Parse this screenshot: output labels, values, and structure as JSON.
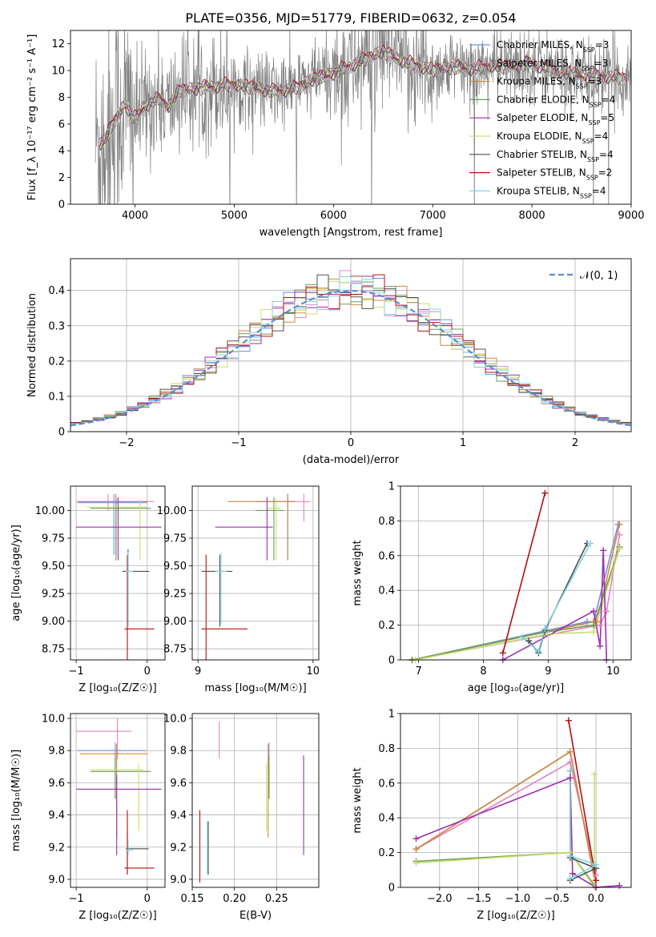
{
  "figure_title": "PLATE=0356, MJD=51779, FIBERID=0632, z=0.054",
  "models": [
    {
      "name": "Chabrier MILES",
      "nssp": "3",
      "color": "#6f93e0"
    },
    {
      "name": "Salpeter MILES",
      "nssp": "3",
      "color": "#e383bf"
    },
    {
      "name": "Kroupa MILES",
      "nssp": "3",
      "color": "#d2873a"
    },
    {
      "name": "Chabrier ELODIE",
      "nssp": "4",
      "color": "#6a9a55"
    },
    {
      "name": "Salpeter ELODIE",
      "nssp": "5",
      "color": "#9b2fb0"
    },
    {
      "name": "Kroupa ELODIE",
      "nssp": "4",
      "color": "#c8e06a"
    },
    {
      "name": "Chabrier STELIB",
      "nssp": "4",
      "color": "#505050"
    },
    {
      "name": "Salpeter STELIB",
      "nssp": "2",
      "color": "#b01010"
    },
    {
      "name": "Kroupa STELIB",
      "nssp": "4",
      "color": "#7fd3e0"
    }
  ],
  "chart_data": [
    {
      "id": "spectrum",
      "type": "line",
      "xlabel": "wavelength [Angstrom, rest frame]",
      "ylabel": "Flux [f_λ 10⁻¹⁷ erg cm⁻² s⁻¹ A⁻¹]",
      "xlim": [
        3350,
        9000
      ],
      "ylim": [
        0,
        13
      ],
      "xticks": [
        4000,
        5000,
        6000,
        7000,
        8000,
        9000
      ],
      "yticks": [
        0,
        2,
        4,
        6,
        8,
        10,
        12
      ],
      "legend": "right",
      "data_color": "#808080",
      "data_range": [
        3600,
        9000
      ],
      "model_shape": {
        "x": [
          3640,
          3700,
          3760,
          3820,
          3900,
          3960,
          4020,
          4080,
          4150,
          4250,
          4340,
          4450,
          4600,
          4800,
          5000,
          5200,
          5400,
          5600,
          5800,
          6000,
          6200,
          6400,
          6500,
          6600,
          6800,
          7000,
          7200,
          7400,
          7600,
          7800,
          8000,
          8200,
          8400,
          8600,
          8800,
          8950
        ],
        "y": [
          4.5,
          4.8,
          5.8,
          6.5,
          7.5,
          6.6,
          6.4,
          7.2,
          7.6,
          7.8,
          7.3,
          8.5,
          8.6,
          8.8,
          8.9,
          8.7,
          8.4,
          8.6,
          9.3,
          9.8,
          10.4,
          11.1,
          11.4,
          11.0,
          10.4,
          10.0,
          10.2,
          10.1,
          10.3,
          10.3,
          10.5,
          10.0,
          9.7,
          9.5,
          9.5,
          9.4
        ]
      }
    },
    {
      "id": "residuals",
      "type": "line",
      "xlabel": "(data-model)/error",
      "ylabel": "Normed distribution",
      "xlim": [
        -2.5,
        2.5
      ],
      "ylim": [
        0,
        0.49
      ],
      "xticks": [
        -2,
        -1,
        0,
        1,
        2
      ],
      "xtick_labels": [
        "−2",
        "−1",
        "0",
        "1",
        "2"
      ],
      "yticks": [
        0.0,
        0.1,
        0.2,
        0.3,
        0.4
      ],
      "grid": true,
      "legend": "top-right",
      "gaussian_label": "𝒩(0, 1)",
      "gaussian_color": "#5b8bd6",
      "bin_width": 0.1
    },
    {
      "id": "age-z",
      "type": "scatter",
      "xlabel": "Z [log₁₀(Z/Z☉)]",
      "ylabel": "age  [log₁₀(age/yr)]",
      "xlim": [
        -1.08,
        0.25
      ],
      "ylim": [
        8.65,
        10.22
      ],
      "xticks": [
        -1,
        0
      ],
      "xtick_labels": [
        "−1",
        "0"
      ],
      "yticks": [
        8.75,
        9.0,
        9.25,
        9.5,
        9.75,
        10.0
      ],
      "ytick_labels": [
        "8.75",
        "9.00",
        "9.25",
        "9.50",
        "9.75",
        "10.00"
      ],
      "grid": true,
      "crosses": [
        {
          "x": -0.55,
          "xe": [
            -1.0,
            0.1
          ],
          "y": 10.08,
          "ye": [
            10.0,
            10.15
          ],
          "color": "#e383bf"
        },
        {
          "x": -0.47,
          "xe": [
            -0.98,
            0.0
          ],
          "y": 10.07,
          "ye": [
            9.6,
            10.15
          ],
          "color": "#6f93e0"
        },
        {
          "x": -0.44,
          "xe": [
            -0.97,
            0.0
          ],
          "y": 10.08,
          "ye": [
            9.6,
            10.15
          ],
          "color": "#d2873a"
        },
        {
          "x": -0.44,
          "xe": [
            -0.8,
            0.05
          ],
          "y": 10.02,
          "ye": [
            9.55,
            10.12
          ],
          "color": "#6a9a55"
        },
        {
          "x": -0.1,
          "xe": [
            -0.85,
            0.0
          ],
          "y": 10.03,
          "ye": [
            9.55,
            10.1
          ],
          "color": "#c8e06a"
        },
        {
          "x": -0.41,
          "xe": [
            -1.0,
            0.2
          ],
          "y": 9.85,
          "ye": [
            9.55,
            10.12
          ],
          "color": "#9b2fb0"
        },
        {
          "x": -0.27,
          "xe": [
            -0.35,
            0.03
          ],
          "y": 9.45,
          "ye": [
            8.95,
            9.65
          ],
          "color": "#505050"
        },
        {
          "x": -0.28,
          "xe": [
            -0.32,
            0.1
          ],
          "y": 8.93,
          "ye": [
            8.65,
            9.6
          ],
          "color": "#b01010"
        },
        {
          "x": -0.27,
          "xe": [
            -0.3,
            -0.2
          ],
          "y": 9.45,
          "ye": [
            8.95,
            9.62
          ],
          "color": "#7fd3e0"
        }
      ]
    },
    {
      "id": "age-mass",
      "type": "scatter",
      "xlabel": "mass [log₁₀(M/M☉)]",
      "ylabel": "",
      "xlim": [
        8.95,
        10.05
      ],
      "ylim": [
        8.65,
        10.22
      ],
      "xticks": [
        9,
        10
      ],
      "yticks": [
        8.75,
        9.0,
        9.25,
        9.5,
        9.75,
        10.0
      ],
      "ytick_labels": [
        "8.75",
        "9.00",
        "9.25",
        "9.50",
        "9.75",
        "10.00"
      ],
      "grid": true,
      "crosses": [
        {
          "x": 9.92,
          "xe": [
            9.85,
            9.98
          ],
          "y": 10.08,
          "ye": [
            9.9,
            10.15
          ],
          "color": "#e383bf"
        },
        {
          "x": 9.78,
          "xe": [
            9.5,
            9.85
          ],
          "y": 10.08,
          "ye": [
            9.55,
            10.15
          ],
          "color": "#6f93e0"
        },
        {
          "x": 9.78,
          "xe": [
            9.26,
            9.85
          ],
          "y": 10.08,
          "ye": [
            9.55,
            10.15
          ],
          "color": "#d2873a"
        },
        {
          "x": 9.66,
          "xe": [
            9.5,
            9.75
          ],
          "y": 10.0,
          "ye": [
            9.55,
            10.12
          ],
          "color": "#6a9a55"
        },
        {
          "x": 9.68,
          "xe": [
            9.6,
            9.72
          ],
          "y": 10.02,
          "ye": [
            9.55,
            10.1
          ],
          "color": "#c8e06a"
        },
        {
          "x": 9.6,
          "xe": [
            9.15,
            9.65
          ],
          "y": 9.85,
          "ye": [
            9.55,
            10.12
          ],
          "color": "#9b2fb0"
        },
        {
          "x": 9.19,
          "xe": [
            9.03,
            9.3
          ],
          "y": 9.45,
          "ye": [
            8.95,
            9.6
          ],
          "color": "#505050"
        },
        {
          "x": 9.07,
          "xe": [
            9.03,
            9.43
          ],
          "y": 8.93,
          "ye": [
            8.65,
            9.6
          ],
          "color": "#b01010"
        },
        {
          "x": 9.2,
          "xe": [
            9.15,
            9.25
          ],
          "y": 9.45,
          "ye": [
            8.97,
            9.62
          ],
          "color": "#7fd3e0"
        }
      ]
    },
    {
      "id": "mw-age",
      "type": "line",
      "xlabel": "age  [log₁₀(age/yr)]",
      "ylabel": "mass weight",
      "xlim": [
        6.72,
        10.28
      ],
      "ylim": [
        0,
        1.0
      ],
      "xticks": [
        7,
        8,
        9,
        10
      ],
      "yticks": [
        0.0,
        0.2,
        0.4,
        0.6,
        0.8,
        1.0
      ],
      "grid": true,
      "series": [
        {
          "color": "#e383bf",
          "x": [
            6.9,
            9.8,
            9.9,
            10.1
          ],
          "y": [
            0.0,
            0.2,
            0.28,
            0.72
          ]
        },
        {
          "color": "#6f93e0",
          "x": [
            6.9,
            9.6,
            9.7,
            10.08
          ],
          "y": [
            0.0,
            0.22,
            0.22,
            0.78
          ]
        },
        {
          "color": "#d2873a",
          "x": [
            6.9,
            9.7,
            9.75,
            10.1
          ],
          "y": [
            0.0,
            0.22,
            0.22,
            0.78
          ]
        },
        {
          "color": "#6a9a55",
          "x": [
            6.9,
            8.95,
            9.7,
            10.1
          ],
          "y": [
            0.0,
            0.16,
            0.2,
            0.65
          ]
        },
        {
          "color": "#c8e06a",
          "x": [
            6.95,
            9.0,
            9.7,
            10.1
          ],
          "y": [
            0.0,
            0.15,
            0.16,
            0.64
          ]
        },
        {
          "color": "#9b2fb0",
          "x": [
            8.3,
            9.7,
            9.8,
            9.85,
            9.9
          ],
          "y": [
            0.0,
            0.28,
            0.08,
            0.63,
            0.0
          ]
        },
        {
          "color": "#505050",
          "x": [
            8.7,
            8.85,
            8.95,
            9.6
          ],
          "y": [
            0.11,
            0.04,
            0.17,
            0.67
          ]
        },
        {
          "color": "#b01010",
          "x": [
            8.3,
            8.95
          ],
          "y": [
            0.04,
            0.96
          ]
        },
        {
          "color": "#7fd3e0",
          "x": [
            8.6,
            8.85,
            8.95,
            9.65
          ],
          "y": [
            0.13,
            0.05,
            0.18,
            0.67
          ]
        }
      ]
    },
    {
      "id": "mass-z",
      "type": "scatter",
      "xlabel": "Z [log₁₀(Z/Z☉)]",
      "ylabel": "mass [log₁₀(M/M☉)]",
      "xlim": [
        -1.08,
        0.25
      ],
      "ylim": [
        8.95,
        10.03
      ],
      "xticks": [
        -1,
        0
      ],
      "xtick_labels": [
        "−1",
        "0"
      ],
      "yticks": [
        9.0,
        9.2,
        9.4,
        9.6,
        9.8,
        10.0
      ],
      "ytick_labels": [
        "9.0",
        "9.2",
        "9.4",
        "9.6",
        "9.8",
        "10.0"
      ],
      "grid": true,
      "crosses": [
        {
          "x": -0.42,
          "xe": [
            -1.0,
            -0.22
          ],
          "y": 9.92,
          "ye": [
            9.75,
            10.0
          ],
          "color": "#e383bf"
        },
        {
          "x": -0.45,
          "xe": [
            -0.98,
            -0.02
          ],
          "y": 9.8,
          "ye": [
            9.5,
            9.85
          ],
          "color": "#6f93e0"
        },
        {
          "x": -0.43,
          "xe": [
            -0.95,
            0.0
          ],
          "y": 9.78,
          "ye": [
            9.26,
            9.84
          ],
          "color": "#d2873a"
        },
        {
          "x": -0.45,
          "xe": [
            -0.8,
            0.05
          ],
          "y": 9.67,
          "ye": [
            9.5,
            9.76
          ],
          "color": "#6a9a55"
        },
        {
          "x": -0.12,
          "xe": [
            -0.8,
            -0.05
          ],
          "y": 9.68,
          "ye": [
            9.3,
            9.72
          ],
          "color": "#c8e06a"
        },
        {
          "x": -0.43,
          "xe": [
            -1.0,
            0.2
          ],
          "y": 9.56,
          "ye": [
            9.15,
            9.65
          ],
          "color": "#9b2fb0"
        },
        {
          "x": -0.28,
          "xe": [
            -0.3,
            0.02
          ],
          "y": 9.19,
          "ye": [
            9.03,
            9.3
          ],
          "color": "#505050"
        },
        {
          "x": -0.28,
          "xe": [
            -0.32,
            0.1
          ],
          "y": 9.07,
          "ye": [
            9.03,
            9.43
          ],
          "color": "#b01010"
        },
        {
          "x": -0.27,
          "xe": [
            -0.3,
            -0.2
          ],
          "y": 9.18,
          "ye": [
            9.15,
            9.25
          ],
          "color": "#7fd3e0"
        }
      ]
    },
    {
      "id": "mass-ebv",
      "type": "scatter",
      "xlabel": "E(B-V)",
      "ylabel": "",
      "xlim": [
        0.15,
        0.3
      ],
      "ylim": [
        8.95,
        10.03
      ],
      "xticks": [
        0.15,
        0.2,
        0.25
      ],
      "xtick_labels": [
        "0.15",
        "0.20",
        "0.25"
      ],
      "yticks": [
        9.0,
        9.2,
        9.4,
        9.6,
        9.8,
        10.0
      ],
      "ytick_labels": [
        "9.0",
        "9.2",
        "9.4",
        "9.6",
        "9.8",
        "10.0"
      ],
      "grid": true,
      "crosses": [
        {
          "x": 0.182,
          "y": 9.92,
          "ye": [
            9.75,
            9.98
          ],
          "color": "#e383bf"
        },
        {
          "x": 0.241,
          "y": 9.78,
          "ye": [
            9.5,
            9.85
          ],
          "color": "#6f93e0"
        },
        {
          "x": 0.24,
          "y": 9.78,
          "ye": [
            9.26,
            9.84
          ],
          "color": "#d2873a"
        },
        {
          "x": 0.241,
          "y": 9.67,
          "ye": [
            9.5,
            9.76
          ],
          "color": "#6a9a55"
        },
        {
          "x": 0.238,
          "y": 9.68,
          "ye": [
            9.3,
            9.72
          ],
          "color": "#c8e06a"
        },
        {
          "x": 0.282,
          "y": 9.56,
          "ye": [
            9.15,
            9.77
          ],
          "color": "#9b2fb0"
        },
        {
          "x": 0.169,
          "y": 9.19,
          "ye": [
            9.03,
            9.36
          ],
          "color": "#505050"
        },
        {
          "x": 0.159,
          "y": 9.07,
          "ye": [
            8.98,
            9.43
          ],
          "color": "#b01010"
        },
        {
          "x": 0.168,
          "y": 9.18,
          "ye": [
            9.03,
            9.36
          ],
          "color": "#7fd3e0"
        }
      ]
    },
    {
      "id": "mw-z",
      "type": "line",
      "xlabel": "Z [log₁₀(Z/Z☉)]",
      "ylabel": "mass weight",
      "xlim": [
        -2.5,
        0.45
      ],
      "ylim": [
        0,
        1.0
      ],
      "xticks": [
        -2.0,
        -1.5,
        -1.0,
        -0.5,
        0.0
      ],
      "xtick_labels": [
        "−2.0",
        "−1.5",
        "−1.0",
        "−0.5",
        "0.0"
      ],
      "yticks": [
        0.0,
        0.2,
        0.4,
        0.6,
        0.8,
        1.0
      ],
      "grid": true,
      "series": [
        {
          "color": "#e383bf",
          "x": [
            -2.3,
            -0.33,
            0.0
          ],
          "y": [
            0.22,
            0.72,
            0.07
          ]
        },
        {
          "color": "#6f93e0",
          "x": [
            -2.3,
            -0.33,
            0.0
          ],
          "y": [
            0.22,
            0.78,
            0.0
          ]
        },
        {
          "color": "#d2873a",
          "x": [
            -2.3,
            -0.33,
            0.0
          ],
          "y": [
            0.22,
            0.78,
            0.0
          ]
        },
        {
          "color": "#6a9a55",
          "x": [
            -2.3,
            -0.33,
            0.0
          ],
          "y": [
            0.15,
            0.2,
            0.0
          ]
        },
        {
          "color": "#c8e06a",
          "x": [
            -2.3,
            -0.33,
            -0.02,
            -0.02
          ],
          "y": [
            0.14,
            0.2,
            0.0,
            0.65
          ]
        },
        {
          "color": "#9b2fb0",
          "x": [
            -2.3,
            -0.33,
            -0.3,
            0.0,
            0.3
          ],
          "y": [
            0.28,
            0.63,
            0.08,
            0.0,
            0.01
          ]
        },
        {
          "color": "#505050",
          "x": [
            -0.33,
            -0.33,
            0.0,
            -0.33
          ],
          "y": [
            0.67,
            0.17,
            0.11,
            0.04
          ]
        },
        {
          "color": "#b01010",
          "x": [
            -0.35,
            0.0
          ],
          "y": [
            0.96,
            0.04
          ]
        },
        {
          "color": "#7fd3e0",
          "x": [
            -0.33,
            -0.33,
            0.0,
            -0.33
          ],
          "y": [
            0.67,
            0.18,
            0.13,
            0.05
          ]
        }
      ]
    }
  ]
}
